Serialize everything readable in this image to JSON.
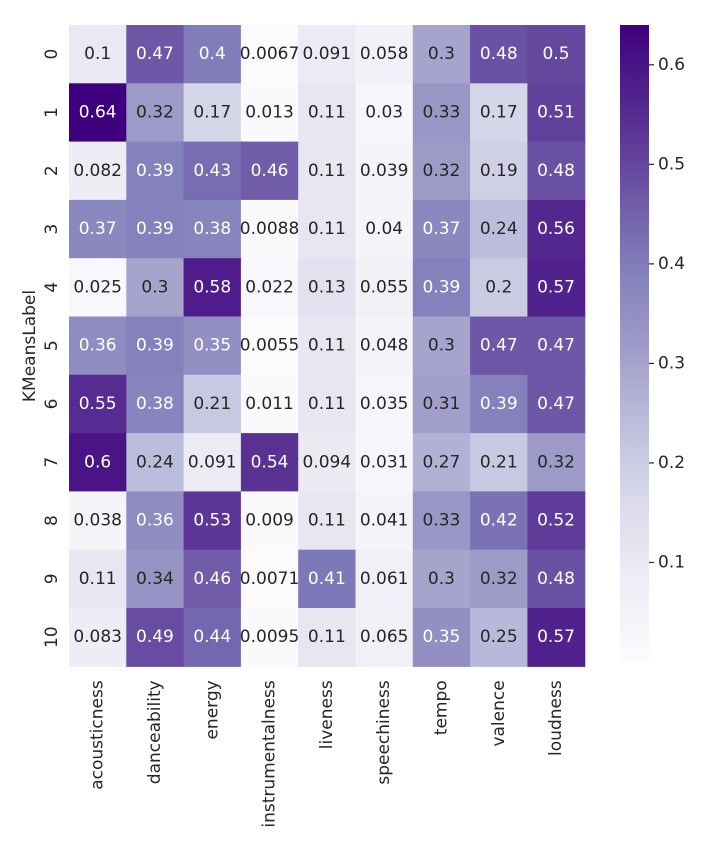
{
  "chart_data": {
    "type": "heatmap",
    "ylabel": "KMeansLabel",
    "xlabel": "",
    "title": "",
    "colormap": "Purples",
    "color_range": [
      0,
      0.64
    ],
    "colorbar_ticks": [
      "0.1",
      "0.2",
      "0.3",
      "0.4",
      "0.5",
      "0.6"
    ],
    "columns": [
      "acousticness",
      "danceability",
      "energy",
      "instrumentalness",
      "liveness",
      "speechiness",
      "tempo",
      "valence",
      "loudness"
    ],
    "rows": [
      "0",
      "1",
      "2",
      "3",
      "4",
      "5",
      "6",
      "7",
      "8",
      "9",
      "10"
    ],
    "values": [
      [
        0.1,
        0.47,
        0.4,
        0.0067,
        0.091,
        0.058,
        0.3,
        0.48,
        0.5
      ],
      [
        0.64,
        0.32,
        0.17,
        0.013,
        0.11,
        0.03,
        0.33,
        0.17,
        0.51
      ],
      [
        0.082,
        0.39,
        0.43,
        0.46,
        0.11,
        0.039,
        0.32,
        0.19,
        0.48
      ],
      [
        0.37,
        0.39,
        0.38,
        0.0088,
        0.11,
        0.04,
        0.37,
        0.24,
        0.56
      ],
      [
        0.025,
        0.3,
        0.58,
        0.022,
        0.13,
        0.055,
        0.39,
        0.2,
        0.57
      ],
      [
        0.36,
        0.39,
        0.35,
        0.0055,
        0.11,
        0.048,
        0.3,
        0.47,
        0.47
      ],
      [
        0.55,
        0.38,
        0.21,
        0.011,
        0.11,
        0.035,
        0.31,
        0.39,
        0.47
      ],
      [
        0.6,
        0.24,
        0.091,
        0.54,
        0.094,
        0.031,
        0.27,
        0.21,
        0.32
      ],
      [
        0.038,
        0.36,
        0.53,
        0.009,
        0.11,
        0.041,
        0.33,
        0.42,
        0.52
      ],
      [
        0.11,
        0.34,
        0.46,
        0.0071,
        0.41,
        0.061,
        0.3,
        0.32,
        0.48
      ],
      [
        0.083,
        0.49,
        0.44,
        0.0095,
        0.11,
        0.065,
        0.35,
        0.25,
        0.57
      ]
    ],
    "labels": [
      [
        "0.1",
        "0.47",
        "0.4",
        "0.0067",
        "0.091",
        "0.058",
        "0.3",
        "0.48",
        "0.5"
      ],
      [
        "0.64",
        "0.32",
        "0.17",
        "0.013",
        "0.11",
        "0.03",
        "0.33",
        "0.17",
        "0.51"
      ],
      [
        "0.082",
        "0.39",
        "0.43",
        "0.46",
        "0.11",
        "0.039",
        "0.32",
        "0.19",
        "0.48"
      ],
      [
        "0.37",
        "0.39",
        "0.38",
        "0.0088",
        "0.11",
        "0.04",
        "0.37",
        "0.24",
        "0.56"
      ],
      [
        "0.025",
        "0.3",
        "0.58",
        "0.022",
        "0.13",
        "0.055",
        "0.39",
        "0.2",
        "0.57"
      ],
      [
        "0.36",
        "0.39",
        "0.35",
        "0.0055",
        "0.11",
        "0.048",
        "0.3",
        "0.47",
        "0.47"
      ],
      [
        "0.55",
        "0.38",
        "0.21",
        "0.011",
        "0.11",
        "0.035",
        "0.31",
        "0.39",
        "0.47"
      ],
      [
        "0.6",
        "0.24",
        "0.091",
        "0.54",
        "0.094",
        "0.031",
        "0.27",
        "0.21",
        "0.32"
      ],
      [
        "0.038",
        "0.36",
        "0.53",
        "0.009",
        "0.11",
        "0.041",
        "0.33",
        "0.42",
        "0.52"
      ],
      [
        "0.11",
        "0.34",
        "0.46",
        "0.0071",
        "0.41",
        "0.061",
        "0.3",
        "0.32",
        "0.48"
      ],
      [
        "0.083",
        "0.49",
        "0.44",
        "0.0095",
        "0.11",
        "0.065",
        "0.35",
        "0.25",
        "0.57"
      ]
    ]
  }
}
